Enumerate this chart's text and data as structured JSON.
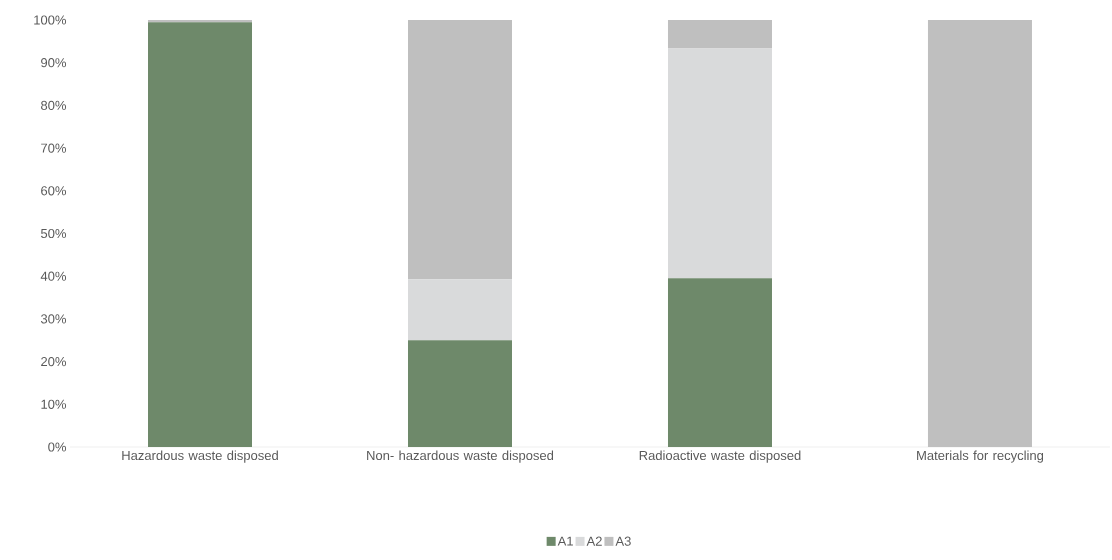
{
  "chart_data": {
    "type": "bar",
    "stacked": true,
    "categories": [
      "Hazardous waste disposed",
      "Non- hazardous waste disposed",
      "Radioactive waste disposed",
      "Materials for recycling"
    ],
    "series": [
      {
        "name": "A1",
        "color": "#6e896a",
        "values": [
          99.5,
          25,
          39.5,
          0
        ]
      },
      {
        "name": "A2",
        "color": "#d9dadb",
        "values": [
          0,
          14.3,
          53.8,
          0
        ]
      },
      {
        "name": "A3",
        "color": "#bfbfbf",
        "values": [
          0.5,
          60.7,
          6.7,
          100
        ]
      }
    ],
    "ylim": [
      0,
      100
    ],
    "yticks": [
      {
        "value": 0,
        "label": "0%"
      },
      {
        "value": 10,
        "label": "10%"
      },
      {
        "value": 20,
        "label": "20%"
      },
      {
        "value": 30,
        "label": "30%"
      },
      {
        "value": 40,
        "label": "40%"
      },
      {
        "value": 50,
        "label": "50%"
      },
      {
        "value": 60,
        "label": "60%"
      },
      {
        "value": 70,
        "label": "70%"
      },
      {
        "value": 80,
        "label": "80%"
      },
      {
        "value": 90,
        "label": "90%"
      },
      {
        "value": 100,
        "label": "100%"
      }
    ],
    "legend": "bottom"
  }
}
